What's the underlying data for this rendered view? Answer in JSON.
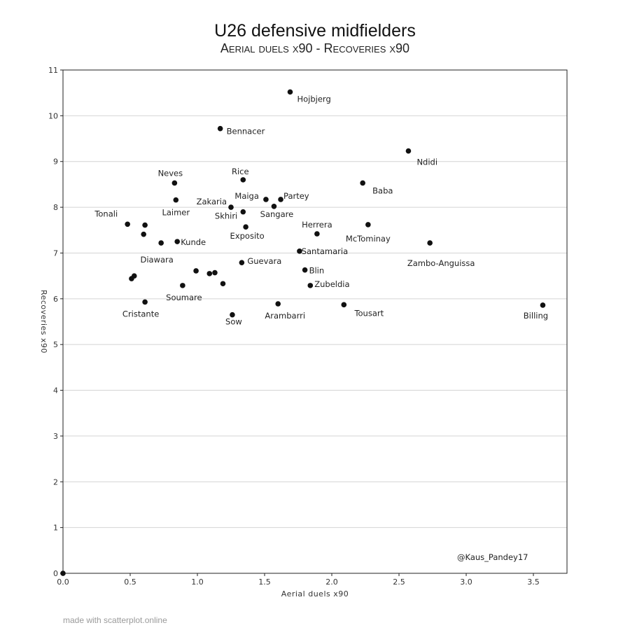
{
  "chart_data": {
    "type": "scatter",
    "title": "U26 defensive midfielders",
    "subtitle": "Aerial duels x90 - Recoveries x90",
    "xlabel": "Aerial duels x90",
    "ylabel": "Recoveries x90",
    "xlim": [
      0,
      3.75
    ],
    "ylim": [
      0,
      11
    ],
    "xticks": [
      "0.0",
      "0.5",
      "1.0",
      "1.5",
      "2.0",
      "2.5",
      "3.0",
      "3.5"
    ],
    "yticks": [
      "0",
      "1",
      "2",
      "3",
      "4",
      "5",
      "6",
      "7",
      "8",
      "9",
      "10",
      "11"
    ],
    "grid": "horizontal",
    "points": [
      {
        "label": "Hojbjerg",
        "x": 1.69,
        "y": 10.52
      },
      {
        "label": "Bennacer",
        "x": 1.17,
        "y": 9.72
      },
      {
        "label": "Ndidi",
        "x": 2.57,
        "y": 9.23
      },
      {
        "label": "Rice",
        "x": 1.34,
        "y": 8.6
      },
      {
        "label": "Neves",
        "x": 0.83,
        "y": 8.53
      },
      {
        "label": "Baba",
        "x": 2.23,
        "y": 8.53
      },
      {
        "label": "Maiga",
        "x": 1.51,
        "y": 8.17
      },
      {
        "label": "Partey",
        "x": 1.62,
        "y": 8.17
      },
      {
        "label": "Laimer",
        "x": 0.84,
        "y": 8.16
      },
      {
        "label": "Zakaria",
        "x": 1.25,
        "y": 8.0
      },
      {
        "label": "Sangare",
        "x": 1.57,
        "y": 8.02
      },
      {
        "label": "Skhiri",
        "x": 1.34,
        "y": 7.9
      },
      {
        "label": "Tonali",
        "x": 0.48,
        "y": 7.63
      },
      {
        "label": "",
        "x": 0.61,
        "y": 7.61
      },
      {
        "label": "McTominay",
        "x": 2.27,
        "y": 7.62
      },
      {
        "label": "Exposito",
        "x": 1.36,
        "y": 7.57
      },
      {
        "label": "Herrera",
        "x": 1.89,
        "y": 7.42
      },
      {
        "label": "",
        "x": 0.6,
        "y": 7.41
      },
      {
        "label": "Kunde",
        "x": 0.85,
        "y": 7.25
      },
      {
        "label": "Diawara",
        "x": 0.73,
        "y": 7.22
      },
      {
        "label": "Zambo-Anguissa",
        "x": 2.73,
        "y": 7.22
      },
      {
        "label": "Santamaria",
        "x": 1.76,
        "y": 7.04
      },
      {
        "label": "Guevara",
        "x": 1.33,
        "y": 6.79
      },
      {
        "label": "Blin",
        "x": 1.8,
        "y": 6.63
      },
      {
        "label": "",
        "x": 0.99,
        "y": 6.61
      },
      {
        "label": "",
        "x": 1.13,
        "y": 6.57
      },
      {
        "label": "",
        "x": 1.09,
        "y": 6.55
      },
      {
        "label": "",
        "x": 0.53,
        "y": 6.5
      },
      {
        "label": "",
        "x": 0.51,
        "y": 6.44
      },
      {
        "label": "",
        "x": 1.19,
        "y": 6.33
      },
      {
        "label": "Soumare",
        "x": 0.89,
        "y": 6.29
      },
      {
        "label": "Zubeldia",
        "x": 1.84,
        "y": 6.29
      },
      {
        "label": "Cristante",
        "x": 0.61,
        "y": 5.93
      },
      {
        "label": "Arambarri",
        "x": 1.6,
        "y": 5.89
      },
      {
        "label": "Tousart",
        "x": 2.09,
        "y": 5.87
      },
      {
        "label": "Billing",
        "x": 3.57,
        "y": 5.86
      },
      {
        "label": "Sow",
        "x": 1.26,
        "y": 5.65
      },
      {
        "label": "",
        "x": 0.0,
        "y": 0.0
      }
    ],
    "credit": "@Kaus_Pandey17"
  },
  "footer": "made with scatterplot.online"
}
